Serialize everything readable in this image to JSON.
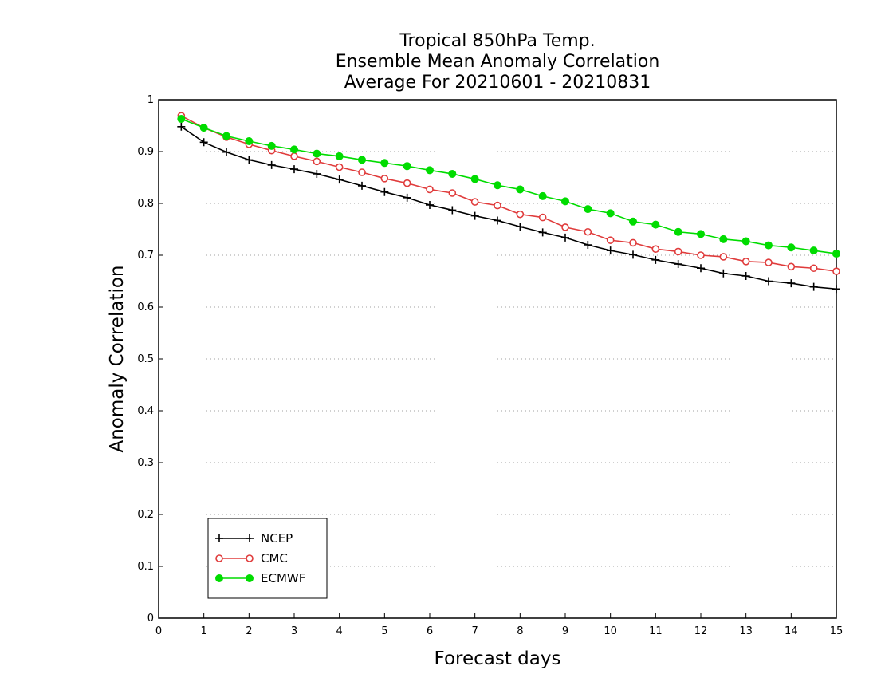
{
  "chart_data": {
    "type": "line",
    "title": [
      "Tropical 850hPa Temp.",
      "Ensemble Mean Anomaly Correlation",
      "Average For 20210601 - 20210831"
    ],
    "xlabel": "Forecast days",
    "ylabel": "Anomaly Correlation",
    "xlim": [
      0,
      15
    ],
    "ylim": [
      0,
      1
    ],
    "xticks": [
      "0",
      "1",
      "2",
      "3",
      "4",
      "5",
      "6",
      "7",
      "8",
      "9",
      "10",
      "11",
      "12",
      "13",
      "14",
      "15"
    ],
    "yticks": [
      "0",
      "0.1",
      "0.2",
      "0.3",
      "0.4",
      "0.5",
      "0.6",
      "0.7",
      "0.8",
      "0.9",
      "1"
    ],
    "grid": "dotted horizontal",
    "legend_position": "bottom-left",
    "x": [
      0.5,
      1,
      1.5,
      2,
      2.5,
      3,
      3.5,
      4,
      4.5,
      5,
      5.5,
      6,
      6.5,
      7,
      7.5,
      8,
      8.5,
      9,
      9.5,
      10,
      10.5,
      11,
      11.5,
      12,
      12.5,
      13,
      13.5,
      14,
      14.5,
      15
    ],
    "series": [
      {
        "name": "NCEP",
        "color": "#000000",
        "marker": "plus",
        "values": [
          0.948,
          0.918,
          0.899,
          0.884,
          0.874,
          0.866,
          0.857,
          0.846,
          0.834,
          0.822,
          0.811,
          0.797,
          0.787,
          0.776,
          0.767,
          0.755,
          0.744,
          0.734,
          0.72,
          0.709,
          0.701,
          0.691,
          0.683,
          0.675,
          0.665,
          0.66,
          0.65,
          0.646,
          0.639,
          0.635
        ]
      },
      {
        "name": "CMC",
        "color": "#e03c3c",
        "marker": "open-circle",
        "values": [
          0.969,
          0.946,
          0.928,
          0.914,
          0.902,
          0.891,
          0.881,
          0.87,
          0.86,
          0.848,
          0.839,
          0.827,
          0.82,
          0.803,
          0.796,
          0.779,
          0.773,
          0.754,
          0.745,
          0.729,
          0.724,
          0.712,
          0.707,
          0.7,
          0.697,
          0.688,
          0.686,
          0.678,
          0.675,
          0.669
        ]
      },
      {
        "name": "ECMWF",
        "color": "#00dc00",
        "marker": "filled-circle",
        "values": [
          0.963,
          0.946,
          0.93,
          0.92,
          0.911,
          0.904,
          0.896,
          0.891,
          0.884,
          0.878,
          0.872,
          0.864,
          0.857,
          0.847,
          0.835,
          0.827,
          0.814,
          0.804,
          0.789,
          0.781,
          0.765,
          0.759,
          0.745,
          0.741,
          0.731,
          0.727,
          0.719,
          0.715,
          0.709,
          0.703
        ]
      }
    ]
  }
}
